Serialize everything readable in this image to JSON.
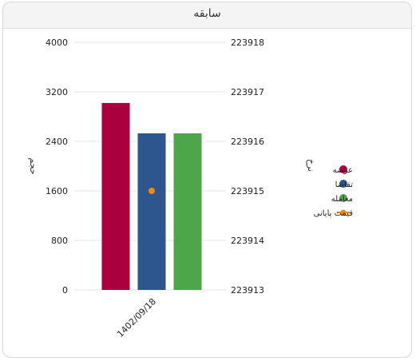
{
  "window": {
    "title": "سابقه"
  },
  "chart_data": {
    "type": "bar",
    "categories": [
      "1402/09/18"
    ],
    "series": [
      {
        "name": "عرضه",
        "type": "bar",
        "axis": "left",
        "color": "#ac003e",
        "values": [
          3020
        ]
      },
      {
        "name": "تقاضا",
        "type": "bar",
        "axis": "left",
        "color": "#2e568e",
        "values": [
          2530
        ]
      },
      {
        "name": "معامله",
        "type": "bar",
        "axis": "left",
        "color": "#4ea64b",
        "values": [
          2530
        ]
      },
      {
        "name": "قیمت پایانی",
        "type": "line",
        "axis": "right",
        "color": "#f0890c",
        "values": [
          223915
        ]
      }
    ],
    "y_left": {
      "label": "حجم",
      "range": [
        0,
        4000
      ],
      "ticks": [
        "0",
        "800",
        "1600",
        "2400",
        "3200",
        "4000"
      ]
    },
    "y_right": {
      "label": "نرخ",
      "range": [
        223913,
        223918
      ],
      "ticks": [
        "223913",
        "223914",
        "223915",
        "223916",
        "223917",
        "223918"
      ]
    },
    "grid": true,
    "legend_position": "right"
  }
}
